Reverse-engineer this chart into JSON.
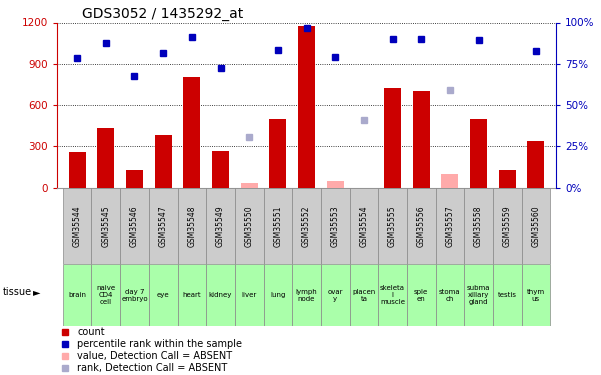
{
  "title": "GDS3052 / 1435292_at",
  "gsm_labels": [
    "GSM35544",
    "GSM35545",
    "GSM35546",
    "GSM35547",
    "GSM35548",
    "GSM35549",
    "GSM35550",
    "GSM35551",
    "GSM35552",
    "GSM35553",
    "GSM35554",
    "GSM35555",
    "GSM35556",
    "GSM35557",
    "GSM35558",
    "GSM35559",
    "GSM35560"
  ],
  "tissue_labels": [
    "brain",
    "naive\nCD4\ncell",
    "day 7\nembryo",
    "eye",
    "heart",
    "kidney",
    "liver",
    "lung",
    "lymph\nnode",
    "ovar\ny",
    "placen\nta",
    "skeleta\nl\nmuscle",
    "sple\nen",
    "stoma\nch",
    "subma\nxillary\ngland",
    "testis",
    "thym\nus"
  ],
  "bar_values": [
    260,
    430,
    130,
    380,
    800,
    265,
    null,
    500,
    1175,
    null,
    null,
    720,
    700,
    null,
    500,
    130,
    340
  ],
  "bar_absent": [
    null,
    null,
    null,
    null,
    null,
    null,
    35,
    null,
    null,
    50,
    null,
    null,
    null,
    100,
    null,
    null,
    null
  ],
  "blue_values": [
    940,
    1050,
    810,
    980,
    1095,
    870,
    null,
    1000,
    1160,
    950,
    null,
    1080,
    1080,
    null,
    1075,
    null,
    990
  ],
  "blue_absent": [
    null,
    null,
    null,
    null,
    null,
    null,
    370,
    null,
    null,
    null,
    490,
    null,
    null,
    710,
    null,
    null,
    null
  ],
  "ylim_left": [
    0,
    1200
  ],
  "ylim_right": [
    0,
    100
  ],
  "yticks_left": [
    0,
    300,
    600,
    900,
    1200
  ],
  "yticks_right": [
    0,
    25,
    50,
    75,
    100
  ],
  "bar_color": "#cc0000",
  "bar_absent_color": "#ffaaaa",
  "blue_color": "#0000bb",
  "blue_absent_color": "#aaaacc",
  "bg_color": "#ffffff",
  "tissue_bg": "#aaffaa",
  "gsm_bg": "#cccccc",
  "bar_width": 0.6,
  "legend_items": [
    [
      "#cc0000",
      "count"
    ],
    [
      "#0000bb",
      "percentile rank within the sample"
    ],
    [
      "#ffaaaa",
      "value, Detection Call = ABSENT"
    ],
    [
      "#aaaacc",
      "rank, Detection Call = ABSENT"
    ]
  ]
}
